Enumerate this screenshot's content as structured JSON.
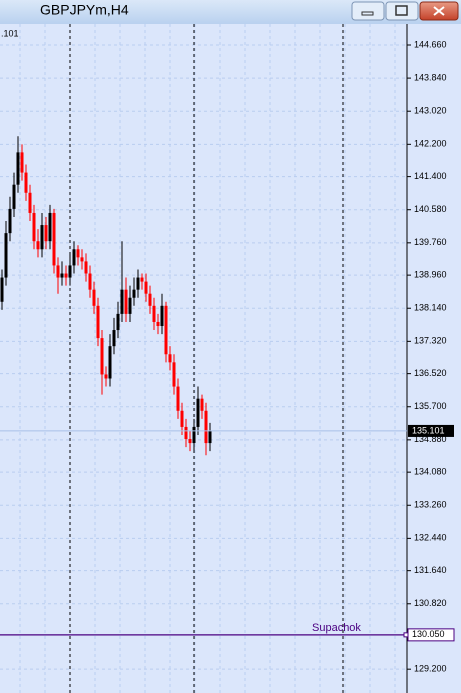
{
  "window_title": "GBPJPYm,H4",
  "chart_data": {
    "type": "candlestick",
    "corner_text": ".101",
    "open": [
      138.3,
      138.9,
      140.0,
      140.6,
      141.2,
      142.0,
      141.5,
      141.0,
      140.5,
      139.8,
      139.6,
      140.2,
      139.8,
      140.5,
      139.2,
      138.9,
      139.0,
      138.9,
      139.2,
      139.6,
      139.4,
      139.3,
      139.0,
      138.6,
      138.2,
      137.4,
      136.5,
      136.4,
      137.2,
      137.6,
      138.0,
      138.6,
      138.0,
      138.4,
      138.6,
      138.9,
      138.8,
      138.5,
      138.2,
      137.8,
      137.7,
      138.2,
      137.0,
      136.8,
      136.2,
      135.6,
      135.2,
      134.9,
      134.8,
      135.2,
      135.9,
      135.6,
      134.8
    ],
    "high": [
      139.1,
      140.3,
      140.9,
      141.5,
      142.4,
      142.2,
      141.7,
      141.2,
      140.7,
      140.1,
      140.5,
      140.4,
      140.7,
      140.6,
      139.4,
      139.3,
      139.2,
      139.5,
      139.8,
      139.7,
      139.6,
      139.5,
      139.2,
      138.8,
      138.4,
      137.6,
      136.7,
      137.5,
      137.9,
      138.3,
      139.8,
      138.9,
      138.7,
      138.9,
      139.1,
      139.0,
      139.0,
      138.7,
      138.4,
      138.0,
      138.5,
      138.3,
      137.2,
      137.0,
      136.4,
      135.8,
      135.4,
      135.1,
      135.4,
      136.2,
      136.0,
      135.8,
      135.3
    ],
    "low": [
      138.1,
      138.7,
      139.8,
      140.4,
      141.0,
      141.3,
      140.8,
      140.3,
      139.6,
      139.4,
      139.4,
      139.6,
      139.6,
      139.0,
      138.5,
      138.7,
      138.7,
      138.7,
      139.0,
      139.2,
      139.1,
      138.8,
      138.4,
      138.0,
      137.2,
      136.0,
      136.2,
      136.2,
      137.0,
      137.4,
      137.8,
      137.8,
      137.8,
      138.2,
      138.4,
      138.6,
      138.3,
      138.0,
      137.6,
      137.5,
      137.5,
      136.8,
      136.6,
      136.0,
      135.4,
      135.0,
      134.7,
      134.6,
      134.6,
      135.0,
      135.4,
      134.5,
      134.6
    ],
    "close": [
      138.9,
      140.0,
      140.6,
      141.2,
      142.0,
      141.5,
      141.0,
      140.5,
      139.8,
      139.6,
      140.2,
      139.8,
      140.5,
      139.2,
      138.9,
      139.0,
      138.9,
      139.2,
      139.6,
      139.4,
      139.3,
      139.0,
      138.6,
      138.2,
      137.4,
      136.5,
      136.4,
      137.2,
      137.6,
      138.0,
      138.6,
      138.0,
      138.4,
      138.6,
      138.9,
      138.8,
      138.5,
      138.2,
      137.8,
      137.7,
      138.2,
      137.0,
      136.8,
      136.2,
      135.6,
      135.2,
      134.9,
      134.8,
      135.2,
      135.9,
      135.6,
      134.8,
      135.1
    ],
    "up_color": "#000000",
    "down_color": "#ff0000",
    "ylim": [
      128.61,
      145.18
    ],
    "yticks": [
      {
        "value": 144.66,
        "label": "144.660"
      },
      {
        "value": 143.84,
        "label": "143.840"
      },
      {
        "value": 143.02,
        "label": "143.020"
      },
      {
        "value": 142.2,
        "label": "142.200"
      },
      {
        "value": 141.4,
        "label": "141.400"
      },
      {
        "value": 140.58,
        "label": "140.580"
      },
      {
        "value": 139.76,
        "label": "139.760"
      },
      {
        "value": 138.96,
        "label": "138.960"
      },
      {
        "value": 138.14,
        "label": "138.140"
      },
      {
        "value": 137.32,
        "label": "137.320"
      },
      {
        "value": 136.52,
        "label": "136.520"
      },
      {
        "value": 135.7,
        "label": "135.700"
      },
      {
        "value": 134.88,
        "label": "134.880"
      },
      {
        "value": 134.08,
        "label": "134.080"
      },
      {
        "value": 133.26,
        "label": "133.260"
      },
      {
        "value": 132.44,
        "label": "132.440"
      },
      {
        "value": 131.64,
        "label": "131.640"
      },
      {
        "value": 130.82,
        "label": "130.820"
      },
      {
        "value": 129.2,
        "label": "129.200"
      }
    ],
    "grid": true,
    "current_price": 135.101,
    "hline": {
      "name": "Supachok",
      "value": 130.05,
      "label": "130.050",
      "color": "#4b0082"
    }
  }
}
